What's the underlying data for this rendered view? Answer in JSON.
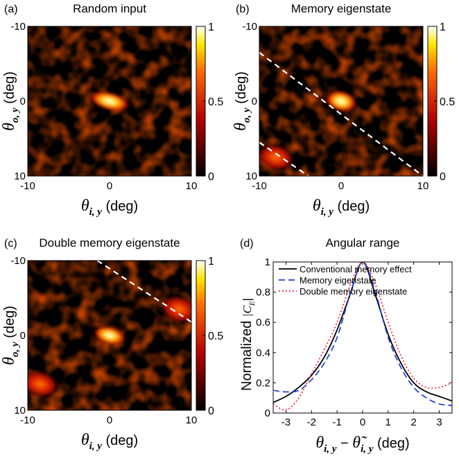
{
  "figure": {
    "colors": {
      "hot_black": "#000000",
      "hot_red": "#b30000",
      "hot_orange": "#ff6a00",
      "hot_yellow": "#ffe600",
      "hot_white": "#ffffff",
      "dashed_line": "#ffffff"
    },
    "colorbar_ticks": [
      "1",
      "0.5",
      "0"
    ],
    "panels": [
      {
        "letter": "(a)",
        "title": "Random input",
        "x_ticks": [
          "-10",
          "0",
          "10"
        ],
        "y_ticks": [
          "-10",
          "0",
          "10"
        ],
        "xlabel": {
          "sym": "θ",
          "sub": "i, y",
          "unit": " (deg)"
        },
        "ylabel": {
          "sym": "θ",
          "sub": "o, y",
          "unit": " (deg)"
        }
      },
      {
        "letter": "(b)",
        "title": "Memory eigenstate",
        "x_ticks": [
          "-10",
          "0",
          "10"
        ],
        "y_ticks": [
          "-10",
          "0",
          "10"
        ],
        "xlabel": {
          "sym": "θ",
          "sub": "i, y",
          "unit": " (deg)"
        },
        "ylabel": {
          "sym": "θ",
          "sub": "o, y",
          "unit": " (deg)"
        }
      },
      {
        "letter": "(c)",
        "title": "Double memory eigenstate",
        "x_ticks": [
          "-10",
          "0",
          "10"
        ],
        "y_ticks": [
          "-10",
          "0",
          "10"
        ],
        "xlabel": {
          "sym": "θ",
          "sub": "i, y",
          "unit": " (deg)"
        },
        "ylabel": {
          "sym": "θ",
          "sub": "o, y",
          "unit": " (deg)"
        }
      }
    ]
  },
  "chart_data": [
    {
      "type": "heatmap",
      "panel": "(a)",
      "title": "Random input",
      "xlim": [
        -10,
        10
      ],
      "ylim": [
        -10,
        10
      ],
      "colorbar": [
        0,
        1
      ],
      "peaks": [
        {
          "x": 0,
          "y": 0,
          "value": 1.0
        }
      ],
      "dashed_lines": []
    },
    {
      "type": "heatmap",
      "panel": "(b)",
      "title": "Memory eigenstate",
      "xlim": [
        -10,
        10
      ],
      "ylim": [
        -10,
        10
      ],
      "colorbar": [
        0,
        1
      ],
      "peaks": [
        {
          "x": 0,
          "y": 0,
          "value": 1.0
        },
        {
          "x": -8,
          "y": 7.5,
          "value": 0.65
        }
      ],
      "dashed_lines": [
        {
          "x1": -10,
          "y1": -6.5,
          "x2": 10,
          "y2": 10
        },
        {
          "x1": -10,
          "y1": 5.5,
          "x2": -4,
          "y2": 10
        }
      ]
    },
    {
      "type": "heatmap",
      "panel": "(c)",
      "title": "Double memory eigenstate",
      "xlim": [
        -10,
        10
      ],
      "ylim": [
        -10,
        10
      ],
      "colorbar": [
        0,
        1
      ],
      "peaks": [
        {
          "x": 0,
          "y": 0,
          "value": 1.0
        },
        {
          "x": -8.5,
          "y": 6.5,
          "value": 0.5
        },
        {
          "x": 8.5,
          "y": -3.5,
          "value": 0.55
        }
      ],
      "dashed_lines": [
        {
          "x1": -1.5,
          "y1": -10,
          "x2": 10,
          "y2": -1.8
        }
      ]
    },
    {
      "type": "line",
      "panel": "(d)",
      "title": "Angular range",
      "xlim": [
        -3.5,
        3.5
      ],
      "ylim": [
        0,
        1
      ],
      "x_ticks": [
        -3,
        -2,
        -1,
        0,
        1,
        2,
        3
      ],
      "y_ticks": [
        0,
        0.2,
        0.4,
        0.6,
        0.8,
        1
      ],
      "x_tick_labels": [
        "-3",
        "-2",
        "-1",
        "0",
        "1",
        "2",
        "3"
      ],
      "y_tick_labels": [
        "0",
        "0.2",
        "0.4",
        "0.6",
        "0.8",
        "1"
      ],
      "ylabel": {
        "text": "Normalized",
        "sym": "|C",
        "sub": "E",
        "close": "|"
      },
      "xlabel": {
        "sym": "θ",
        "sub": "i, y",
        "minus": " − ",
        "sym2": "θ̃",
        "sub2": "i, y",
        "unit": " (deg)"
      },
      "legend_position": "top",
      "series": [
        {
          "name": "Conventional memory effect",
          "color": "#000000",
          "dash": "solid",
          "x": [
            -3.5,
            -3,
            -2.5,
            -2,
            -1.5,
            -1,
            -0.5,
            0,
            0.5,
            1,
            1.5,
            2,
            2.5,
            3,
            3.5
          ],
          "y": [
            0.07,
            0.11,
            0.17,
            0.25,
            0.37,
            0.55,
            0.78,
            1.0,
            0.78,
            0.52,
            0.33,
            0.2,
            0.14,
            0.11,
            0.08
          ]
        },
        {
          "name": "Memory eigenstate",
          "color": "#1f3fd6",
          "dash": "dashed",
          "x": [
            -3.5,
            -3,
            -2.5,
            -2,
            -1.5,
            -1,
            -0.5,
            0,
            0.5,
            1,
            1.5,
            2,
            2.5,
            3,
            3.5
          ],
          "y": [
            0.15,
            0.14,
            0.15,
            0.22,
            0.33,
            0.5,
            0.78,
            1.0,
            0.8,
            0.5,
            0.3,
            0.17,
            0.1,
            0.06,
            0.05
          ]
        },
        {
          "name": "Double memory eigenstate",
          "color": "#e8232b",
          "dash": "dotted",
          "x": [
            -3.5,
            -3,
            -2.5,
            -2,
            -1.5,
            -1,
            -0.5,
            0,
            0.5,
            1,
            1.5,
            2,
            2.5,
            3,
            3.5
          ],
          "y": [
            0.06,
            0.02,
            0.1,
            0.26,
            0.42,
            0.6,
            0.84,
            1.0,
            0.85,
            0.6,
            0.38,
            0.23,
            0.17,
            0.17,
            0.2
          ]
        }
      ]
    }
  ]
}
